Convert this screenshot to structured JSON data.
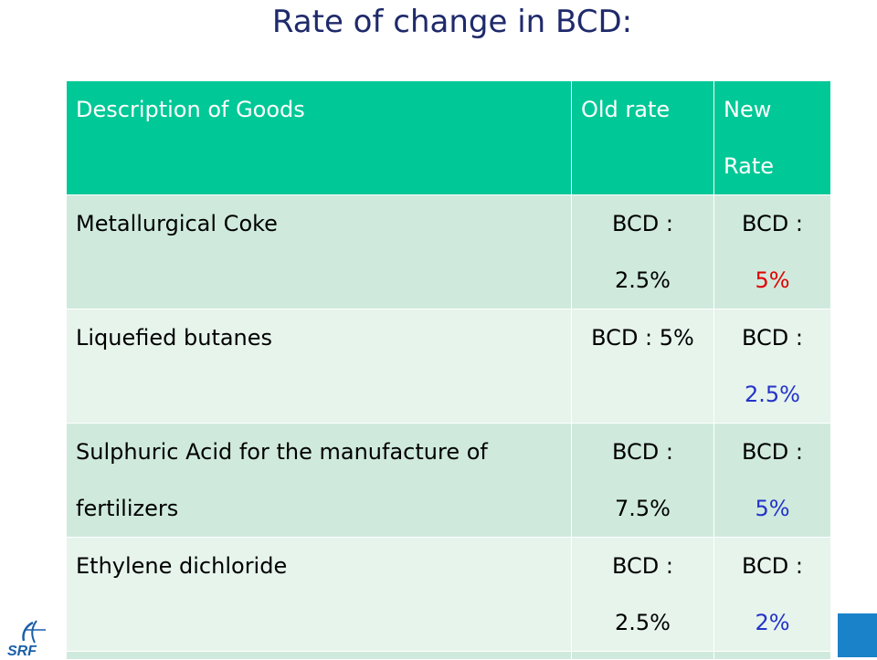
{
  "title": "Rate of change in BCD:",
  "colors": {
    "header_bg": "#00c896",
    "row_odd": "#cfeadd",
    "row_even": "#e6f4ec",
    "new_rate_red": "#e00000",
    "new_rate_blue": "#2433c8",
    "corner_block": "#1a82c8"
  },
  "table": {
    "headers": [
      "Description of Goods",
      "Old  rate",
      "New Rate"
    ],
    "rows": [
      {
        "description": "Metallurgical Coke",
        "old_label": "BCD :",
        "old_value": "2.5%",
        "new_label": "BCD :",
        "new_value": "5%"
      },
      {
        "description": "Liquefied butanes",
        "old_label": "BCD : 5%",
        "old_value": "",
        "new_label": "BCD :",
        "new_value": "2.5%"
      },
      {
        "description": "Sulphuric Acid for the manufacture of fertilizers",
        "old_label": "BCD :",
        "old_value": "7.5%",
        "new_label": "BCD :",
        "new_value": "5%"
      },
      {
        "description": "Ethylene dichloride",
        "old_label": "BCD :",
        "old_value": "2.5%",
        "new_label": "BCD :",
        "new_value": "2%"
      }
    ]
  },
  "logo": {
    "text": "SRF",
    "icon": "srf-logo-icon"
  }
}
